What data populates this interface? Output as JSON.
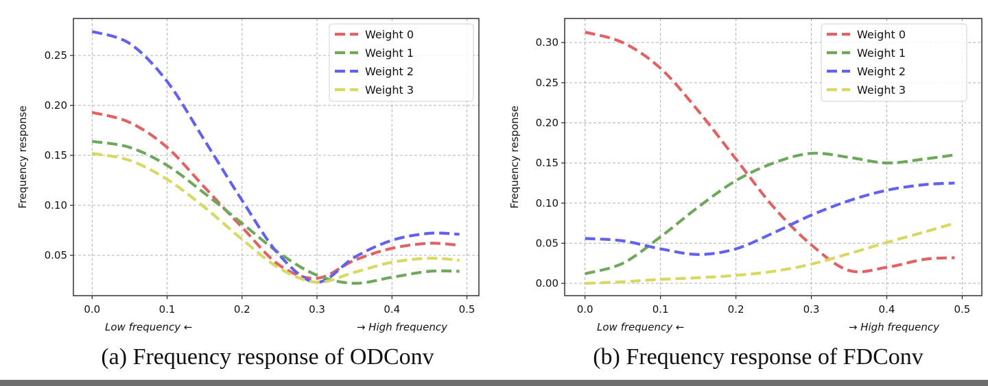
{
  "chart_data": [
    {
      "type": "line",
      "caption": "(a) Frequency response of ODConv",
      "ylabel": "Frequency response",
      "xlabel_left": "Low frequency ←",
      "xlabel_right": "→ High frequency",
      "xlim": [
        -0.025,
        0.516
      ],
      "ylim": [
        0.0096,
        0.287
      ],
      "xticks": [
        "0.0",
        "0.1",
        "0.2",
        "0.3",
        "0.4",
        "0.5"
      ],
      "yticks": [
        "0.05",
        "0.10",
        "0.15",
        "0.20",
        "0.25"
      ],
      "grid": true,
      "legend": "top-right",
      "x": [
        0,
        0.05,
        0.1,
        0.15,
        0.2,
        0.25,
        0.3,
        0.35,
        0.4,
        0.45,
        0.49
      ],
      "series": [
        {
          "name": "Weight 0",
          "color": "#e06262",
          "values": [
            0.193,
            0.183,
            0.158,
            0.118,
            0.078,
            0.04,
            0.027,
            0.045,
            0.057,
            0.062,
            0.06
          ]
        },
        {
          "name": "Weight 1",
          "color": "#6ea85a",
          "values": [
            0.164,
            0.158,
            0.14,
            0.112,
            0.082,
            0.052,
            0.03,
            0.022,
            0.028,
            0.034,
            0.034
          ]
        },
        {
          "name": "Weight 2",
          "color": "#6262ee",
          "values": [
            0.274,
            0.262,
            0.224,
            0.165,
            0.105,
            0.05,
            0.023,
            0.048,
            0.065,
            0.072,
            0.071
          ]
        },
        {
          "name": "Weight 3",
          "color": "#d8d862",
          "values": [
            0.152,
            0.145,
            0.126,
            0.098,
            0.066,
            0.037,
            0.023,
            0.033,
            0.043,
            0.047,
            0.045
          ]
        }
      ]
    },
    {
      "type": "line",
      "caption": "(b) Frequency response of FDConv",
      "ylabel": "Frequency response",
      "xlabel_left": "Low frequency ←",
      "xlabel_right": "→ High frequency",
      "xlim": [
        -0.027,
        0.526
      ],
      "ylim": [
        -0.0153,
        0.33
      ],
      "xticks": [
        "0.0",
        "0.1",
        "0.2",
        "0.3",
        "0.4",
        "0.5"
      ],
      "yticks": [
        "0.00",
        "0.05",
        "0.10",
        "0.15",
        "0.20",
        "0.25",
        "0.30"
      ],
      "grid": true,
      "legend": "top-right",
      "x": [
        0,
        0.05,
        0.1,
        0.15,
        0.2,
        0.25,
        0.3,
        0.35,
        0.4,
        0.45,
        0.49
      ],
      "series": [
        {
          "name": "Weight 0",
          "color": "#e06262",
          "values": [
            0.313,
            0.3,
            0.268,
            0.215,
            0.155,
            0.095,
            0.048,
            0.016,
            0.02,
            0.03,
            0.032
          ]
        },
        {
          "name": "Weight 1",
          "color": "#6ea85a",
          "values": [
            0.012,
            0.025,
            0.058,
            0.095,
            0.128,
            0.15,
            0.162,
            0.157,
            0.15,
            0.155,
            0.16
          ]
        },
        {
          "name": "Weight 2",
          "color": "#6262ee",
          "values": [
            0.056,
            0.053,
            0.043,
            0.036,
            0.043,
            0.063,
            0.085,
            0.103,
            0.116,
            0.123,
            0.125
          ]
        },
        {
          "name": "Weight 3",
          "color": "#d8d862",
          "values": [
            0.0,
            0.002,
            0.005,
            0.007,
            0.01,
            0.015,
            0.024,
            0.037,
            0.051,
            0.064,
            0.075
          ]
        }
      ]
    }
  ]
}
